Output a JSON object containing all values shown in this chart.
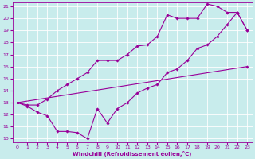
{
  "xlabel": "Windchill (Refroidissement éolien,°C)",
  "bg_color": "#c8ecec",
  "line_color": "#990099",
  "grid_color": "#aadddd",
  "xlim": [
    -0.5,
    23.5
  ],
  "ylim": [
    9.7,
    21.3
  ],
  "yticks": [
    10,
    11,
    12,
    13,
    14,
    15,
    16,
    17,
    18,
    19,
    20,
    21
  ],
  "xticks": [
    0,
    1,
    2,
    3,
    4,
    5,
    6,
    7,
    8,
    9,
    10,
    11,
    12,
    13,
    14,
    15,
    16,
    17,
    18,
    19,
    20,
    21,
    22,
    23
  ],
  "line1_x": [
    0,
    1,
    2,
    3,
    4,
    5,
    6,
    7,
    8,
    9,
    10,
    11,
    12,
    13,
    14,
    15,
    16,
    17,
    18,
    19,
    20,
    21,
    22,
    23
  ],
  "line1_y": [
    13.0,
    12.7,
    12.2,
    11.9,
    10.6,
    10.6,
    10.5,
    10.0,
    12.5,
    11.3,
    12.5,
    13.0,
    13.8,
    14.2,
    14.5,
    15.5,
    15.8,
    16.5,
    17.5,
    17.8,
    18.5,
    19.5,
    20.5,
    19.0
  ],
  "line2_x": [
    0,
    23
  ],
  "line2_y": [
    13.0,
    16.0
  ],
  "line3_x": [
    0,
    1,
    2,
    3,
    4,
    5,
    6,
    7,
    8,
    9,
    10,
    11,
    12,
    13,
    14,
    15,
    16,
    17,
    18,
    19,
    20,
    21,
    22,
    23
  ],
  "line3_y": [
    13.0,
    12.8,
    12.8,
    13.3,
    14.0,
    14.5,
    15.0,
    15.5,
    16.5,
    16.5,
    16.5,
    17.0,
    17.7,
    17.8,
    18.5,
    20.3,
    20.0,
    20.0,
    20.0,
    21.2,
    21.0,
    20.5,
    20.5,
    19.0
  ],
  "marker": "D",
  "markersize": 1.8,
  "linewidth": 0.8
}
